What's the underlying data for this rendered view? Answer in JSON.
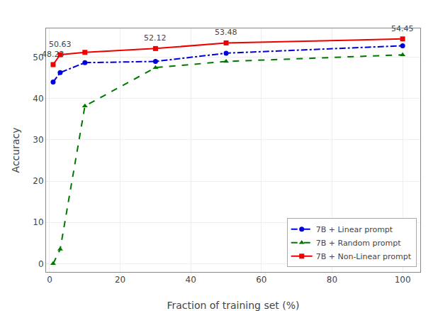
{
  "chart_data": {
    "type": "line",
    "x_label": "Fraction of training set (%)",
    "y_label": "Accuracy",
    "x": [
      1,
      3,
      10,
      30,
      50,
      100
    ],
    "series": [
      {
        "name": "7B + Linear prompt",
        "color": "#0000dd",
        "marker": "circle",
        "line_style": "dashdot",
        "values": [
          44.0,
          46.3,
          48.7,
          49.0,
          51.0,
          52.8
        ]
      },
      {
        "name": "7B + Random prompt",
        "color": "#007700",
        "marker": "triangle-up",
        "line_style": "dash",
        "values": [
          0.0,
          3.5,
          38.2,
          47.5,
          49.0,
          50.6
        ]
      },
      {
        "name": "7B + Non-Linear prompt",
        "color": "#ee0000",
        "marker": "square",
        "line_style": "solid",
        "values": [
          48.23,
          50.63,
          51.2,
          52.12,
          53.48,
          54.45
        ]
      }
    ],
    "annotations": [
      {
        "x": 1,
        "y": 48.23,
        "text": "48.23"
      },
      {
        "x": 3,
        "y": 50.63,
        "text": "50.63"
      },
      {
        "x": 30,
        "y": 52.12,
        "text": "52.12"
      },
      {
        "x": 50,
        "y": 53.48,
        "text": "53.48"
      },
      {
        "x": 100,
        "y": 54.45,
        "text": "54.45"
      }
    ],
    "xlim": [
      -1,
      105
    ],
    "ylim": [
      -2,
      57
    ],
    "xticks": [
      0,
      20,
      40,
      60,
      80,
      100
    ],
    "yticks": [
      0,
      10,
      20,
      30,
      40,
      50
    ],
    "grid": true,
    "legend": "lower right"
  }
}
